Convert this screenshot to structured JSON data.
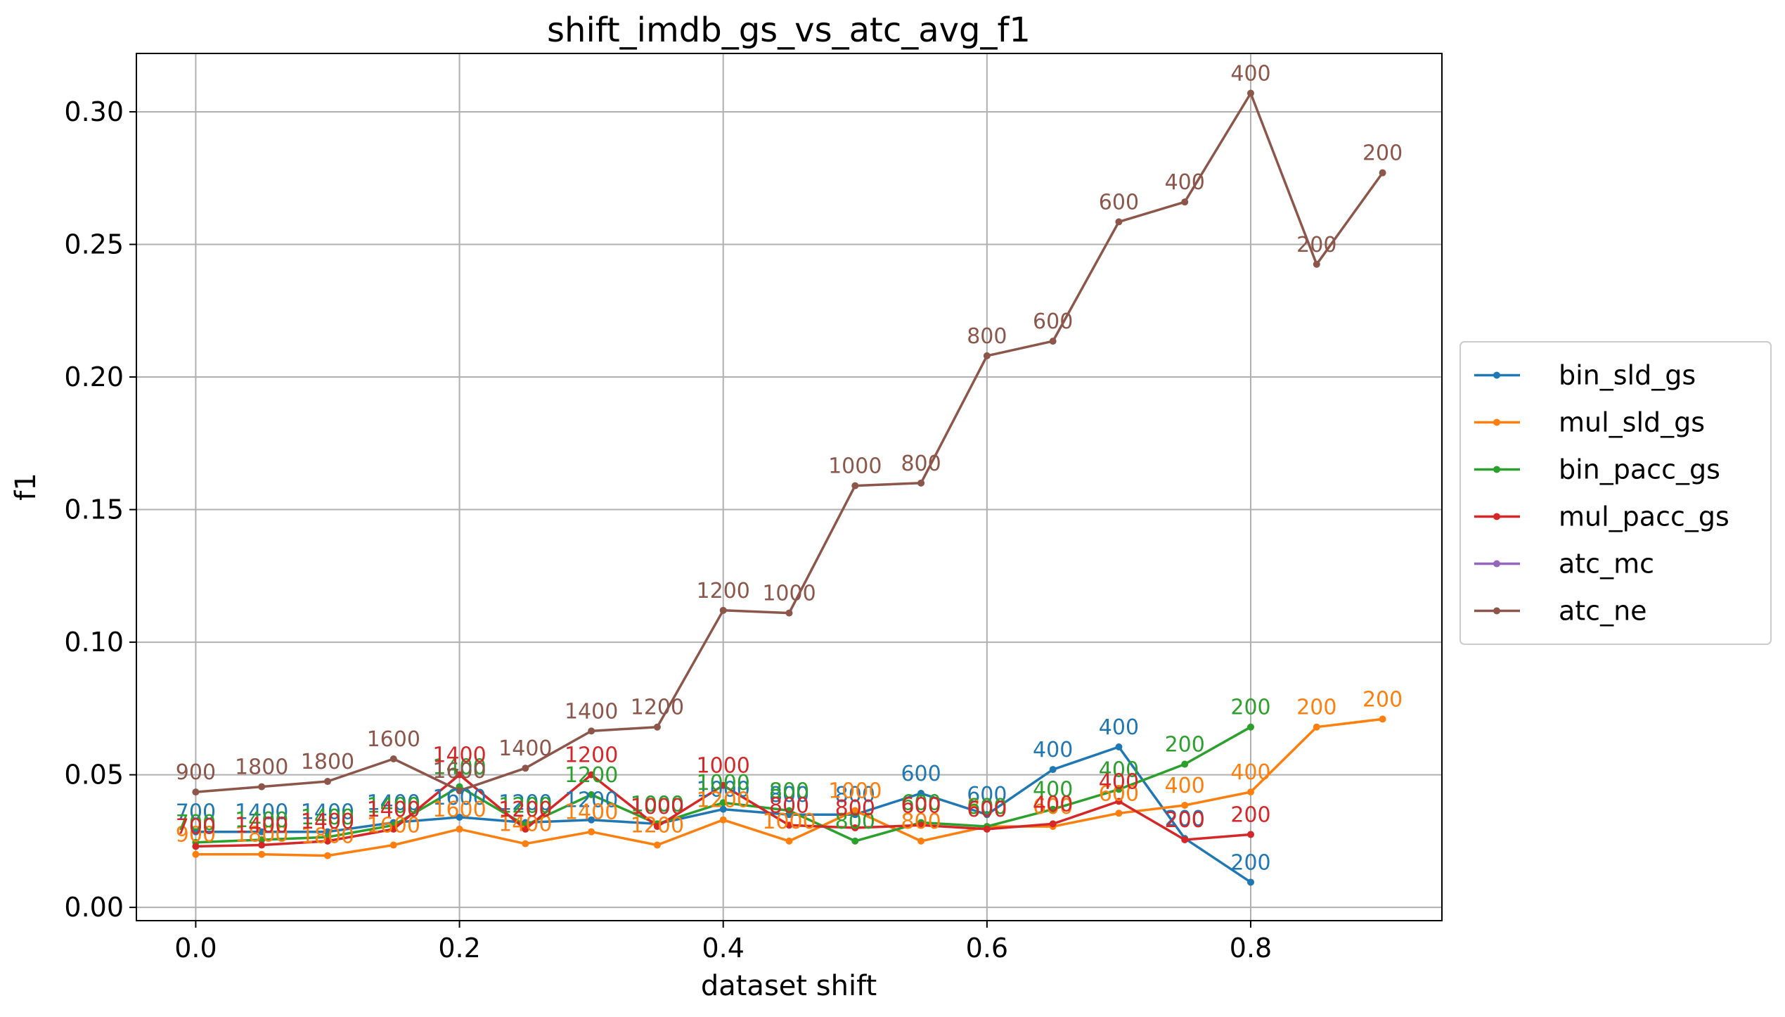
{
  "chart_data": {
    "type": "line",
    "title": "shift_imdb_gs_vs_atc_avg_f1",
    "xlabel": "dataset shift",
    "ylabel": "f1",
    "xlim": [
      -0.045,
      0.945
    ],
    "ylim": [
      -0.005,
      0.322
    ],
    "x_ticks": [
      "0.0",
      "0.2",
      "0.4",
      "0.6",
      "0.8"
    ],
    "x_tick_values": [
      0.0,
      0.2,
      0.4,
      0.6,
      0.8
    ],
    "y_ticks": [
      "0.00",
      "0.05",
      "0.10",
      "0.15",
      "0.20",
      "0.25",
      "0.30"
    ],
    "y_tick_values": [
      0.0,
      0.05,
      0.1,
      0.15,
      0.2,
      0.25,
      0.3
    ],
    "grid": true,
    "legend_position": "right-center",
    "series": [
      {
        "name": "bin_sld_gs",
        "color": "#1f77b4",
        "x": [
          0.0,
          0.05,
          0.1,
          0.15,
          0.2,
          0.25,
          0.3,
          0.35,
          0.4,
          0.45,
          0.5,
          0.55,
          0.6,
          0.65,
          0.7,
          0.75,
          0.8
        ],
        "y": [
          0.0285,
          0.0285,
          0.0285,
          0.032,
          0.034,
          0.032,
          0.033,
          0.0315,
          0.037,
          0.035,
          0.035,
          0.043,
          0.035,
          0.052,
          0.0605,
          0.026,
          0.0095
        ],
        "labels": [
          "700",
          "1400",
          "1400",
          "1400",
          "1600",
          "1200",
          "1200",
          "1000",
          "1000",
          "800",
          "800",
          "600",
          "600",
          "400",
          "400",
          "200",
          "200"
        ]
      },
      {
        "name": "mul_sld_gs",
        "color": "#ff7f0e",
        "x": [
          0.0,
          0.05,
          0.1,
          0.15,
          0.2,
          0.25,
          0.3,
          0.35,
          0.4,
          0.45,
          0.5,
          0.55,
          0.6,
          0.65,
          0.7,
          0.75,
          0.8,
          0.85,
          0.9
        ],
        "y": [
          0.02,
          0.02,
          0.0195,
          0.0235,
          0.0295,
          0.024,
          0.0285,
          0.0235,
          0.033,
          0.025,
          0.0365,
          0.025,
          0.0305,
          0.0305,
          0.0355,
          0.0385,
          0.0435,
          0.068,
          0.071
        ],
        "labels": [
          "900",
          "1800",
          "1800",
          "1600",
          "1600",
          "1400",
          "1400",
          "1200",
          "1200",
          "1000",
          "1000",
          "800",
          "800",
          "600",
          "600",
          "400",
          "400",
          "200",
          "200"
        ]
      },
      {
        "name": "bin_pacc_gs",
        "color": "#2ca02c",
        "x": [
          0.0,
          0.05,
          0.1,
          0.15,
          0.2,
          0.25,
          0.3,
          0.35,
          0.4,
          0.45,
          0.5,
          0.55,
          0.6,
          0.65,
          0.7,
          0.75,
          0.8
        ],
        "y": [
          0.0245,
          0.0255,
          0.0265,
          0.031,
          0.0455,
          0.031,
          0.0425,
          0.0315,
          0.0395,
          0.0365,
          0.025,
          0.032,
          0.0305,
          0.037,
          0.0445,
          0.054,
          0.068
        ],
        "labels": [
          "700",
          "1400",
          "1400",
          "1400",
          "1400",
          "1200",
          "1200",
          "1000",
          "1000",
          "800",
          "800",
          "600",
          "600",
          "400",
          "400",
          "200",
          "200"
        ]
      },
      {
        "name": "mul_pacc_gs",
        "color": "#d62728",
        "x": [
          0.0,
          0.05,
          0.1,
          0.15,
          0.2,
          0.25,
          0.3,
          0.35,
          0.4,
          0.45,
          0.5,
          0.55,
          0.6,
          0.65,
          0.7,
          0.75,
          0.8
        ],
        "y": [
          0.023,
          0.0235,
          0.025,
          0.0295,
          0.05,
          0.0295,
          0.05,
          0.0305,
          0.046,
          0.031,
          0.03,
          0.031,
          0.0295,
          0.0315,
          0.04,
          0.0255,
          0.0275
        ],
        "labels": [
          "700",
          "1400",
          "1400",
          "1400",
          "1400",
          "1200",
          "1200",
          "1000",
          "1000",
          "800",
          "800",
          "600",
          "600",
          "400",
          "400",
          "200",
          "200"
        ]
      },
      {
        "name": "atc_mc",
        "color": "#9467bd",
        "x": [],
        "y": [],
        "labels": []
      },
      {
        "name": "atc_ne",
        "color": "#8c564b",
        "x": [
          0.0,
          0.05,
          0.1,
          0.15,
          0.2,
          0.25,
          0.3,
          0.35,
          0.4,
          0.45,
          0.5,
          0.55,
          0.6,
          0.65,
          0.7,
          0.75,
          0.8,
          0.85,
          0.9
        ],
        "y": [
          0.0435,
          0.0455,
          0.0475,
          0.056,
          0.044,
          0.0525,
          0.0665,
          0.068,
          0.112,
          0.111,
          0.159,
          0.16,
          0.208,
          0.2135,
          0.2585,
          0.266,
          0.307,
          0.2425,
          0.277
        ],
        "labels": [
          "900",
          "1800",
          "1800",
          "1600",
          "1600",
          "1400",
          "1400",
          "1200",
          "1200",
          "1000",
          "1000",
          "800",
          "800",
          "600",
          "600",
          "400",
          "400",
          "200",
          "200"
        ]
      }
    ]
  }
}
